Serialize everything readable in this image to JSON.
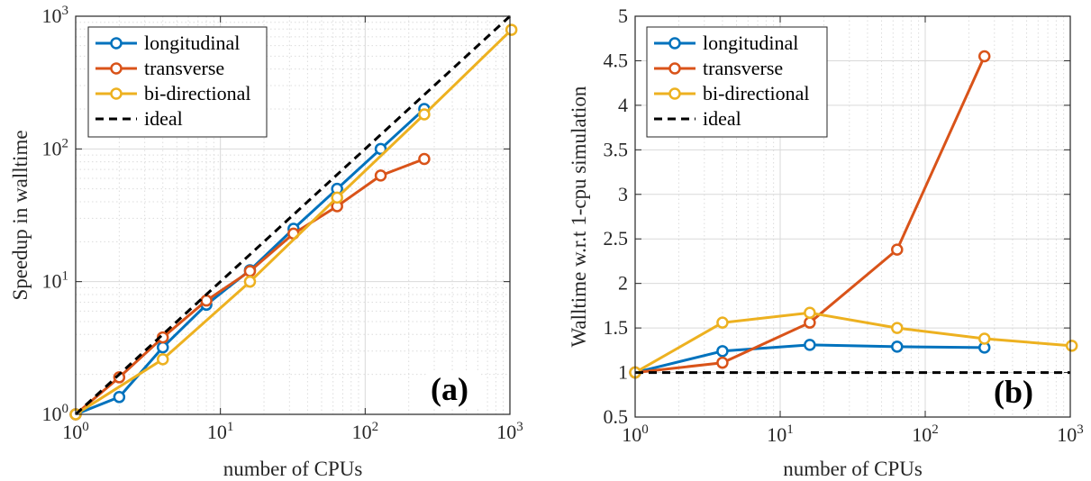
{
  "chart_data": [
    {
      "type": "line",
      "panel_label": "(a)",
      "xlabel": "number of CPUs",
      "ylabel": "Speedup in walltime",
      "xscale": "log",
      "yscale": "log",
      "xlim": [
        1,
        1000
      ],
      "ylim": [
        1,
        1000
      ],
      "xticks": [
        1,
        10,
        100,
        1000
      ],
      "yticks": [
        1,
        10,
        100,
        1000
      ],
      "grid": true,
      "legend_position": "top-left",
      "series": [
        {
          "name": "longitudinal",
          "color": "#0072BD",
          "style": "solid",
          "markers": true,
          "x": [
            1,
            2,
            4,
            8,
            16,
            32,
            64,
            128,
            256
          ],
          "y": [
            1,
            1.35,
            3.2,
            6.7,
            12.2,
            25,
            50,
            100,
            200
          ]
        },
        {
          "name": "transverse",
          "color": "#D95319",
          "style": "solid",
          "markers": true,
          "x": [
            1,
            2,
            4,
            8,
            16,
            32,
            64,
            128,
            256
          ],
          "y": [
            1,
            1.9,
            3.8,
            7.2,
            12,
            23,
            37,
            63,
            84
          ]
        },
        {
          "name": "bi-directional",
          "color": "#EDB120",
          "style": "solid",
          "markers": true,
          "x": [
            1,
            4,
            16,
            64,
            256,
            1024
          ],
          "y": [
            1,
            2.6,
            10,
            43,
            182,
            790
          ]
        },
        {
          "name": "ideal",
          "color": "#000000",
          "style": "dashed",
          "markers": false,
          "x": [
            1,
            1000
          ],
          "y": [
            1,
            1000
          ]
        }
      ]
    },
    {
      "type": "line",
      "panel_label": "(b)",
      "xlabel": "number of CPUs",
      "ylabel": "Walltime w.r.t 1-cpu simulation",
      "xscale": "log",
      "yscale": "linear",
      "xlim": [
        1,
        1000
      ],
      "ylim": [
        0.5,
        5
      ],
      "xticks": [
        1,
        10,
        100,
        1000
      ],
      "yticks": [
        0.5,
        1,
        1.5,
        2,
        2.5,
        3,
        3.5,
        4,
        4.5,
        5
      ],
      "grid": true,
      "legend_position": "top-left",
      "series": [
        {
          "name": "longitudinal",
          "color": "#0072BD",
          "style": "solid",
          "markers": true,
          "x": [
            1,
            4,
            16,
            64,
            256
          ],
          "y": [
            1,
            1.24,
            1.31,
            1.29,
            1.28
          ]
        },
        {
          "name": "transverse",
          "color": "#D95319",
          "style": "solid",
          "markers": true,
          "x": [
            1,
            4,
            16,
            64,
            256
          ],
          "y": [
            1,
            1.11,
            1.56,
            2.38,
            4.55
          ]
        },
        {
          "name": "bi-directional",
          "color": "#EDB120",
          "style": "solid",
          "markers": true,
          "x": [
            1,
            4,
            16,
            64,
            256,
            1024
          ],
          "y": [
            1,
            1.56,
            1.67,
            1.5,
            1.38,
            1.3
          ]
        },
        {
          "name": "ideal",
          "color": "#000000",
          "style": "dashed",
          "markers": false,
          "x": [
            1,
            1000
          ],
          "y": [
            1,
            1
          ]
        }
      ]
    }
  ]
}
